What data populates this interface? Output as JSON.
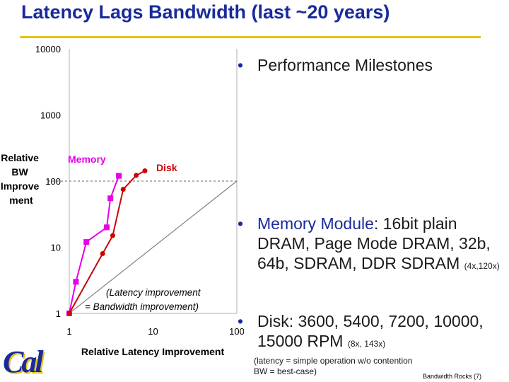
{
  "slide": {
    "title": "Latency Lags Bandwidth (last ~20 years)",
    "logo_text": "Cal",
    "footer": "Bandwidth Rocks (7)",
    "colors": {
      "title": "#1a2a9c",
      "rule": "#e6c419",
      "memory": "#e600e6",
      "disk": "#cc0000"
    }
  },
  "bullets": {
    "milestones": "Performance Milestones",
    "memory_label": "Memory Module",
    "memory_text": ": 16bit plain DRAM, Page Mode DRAM, 32b, 64b, SDRAM, DDR SDRAM ",
    "memory_factor": "(4x,120x)",
    "disk_text": "Disk: 3600, 5400, 7200, 10000, 15000 RPM ",
    "disk_factor": "(8x, 143x)",
    "note": "(latency = simple operation w/o contention BW = best-case)"
  },
  "chart_data": {
    "type": "scatter",
    "xscale": "log",
    "yscale": "log",
    "xlim": [
      1,
      100
    ],
    "ylim": [
      1,
      10000
    ],
    "xticks": [
      "1",
      "10",
      "100"
    ],
    "yticks": [
      "1",
      "10",
      "100",
      "1000",
      "10000"
    ],
    "xlabel": "Relative Latency Improvement",
    "ylabel": "Relative BW Improve ment",
    "series": [
      {
        "name": "Memory",
        "color": "#e600e6",
        "marker": "square",
        "x": [
          1,
          1.2,
          1.6,
          2.8,
          3.1,
          3.9
        ],
        "y": [
          1,
          3,
          12,
          20,
          55,
          120
        ]
      },
      {
        "name": "Disk",
        "color": "#cc0000",
        "marker": "circle",
        "x": [
          1,
          2.5,
          3.3,
          4.4,
          6.3,
          8
        ],
        "y": [
          1,
          8,
          15,
          75,
          122,
          143
        ]
      }
    ],
    "reference_line": {
      "label": "(Latency improvement = Bandwidth improvement)",
      "color": "#808080"
    },
    "dashed_level": 100
  }
}
